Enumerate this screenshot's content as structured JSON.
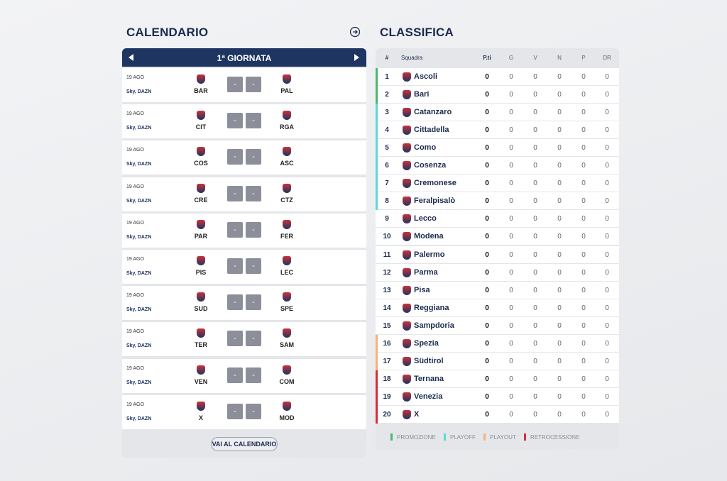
{
  "calendario": {
    "title": "CALENDARIO",
    "round": "1ª GIORNATA",
    "button": "VAI AL CALENDARIO",
    "matches": [
      {
        "date": "19 AGO",
        "tv": "Sky, DAZN",
        "home": "BAR",
        "away": "PAL",
        "score": [
          "-",
          "-"
        ]
      },
      {
        "date": "19 AGO",
        "tv": "Sky, DAZN",
        "home": "CIT",
        "away": "RGA",
        "score": [
          "-",
          "-"
        ]
      },
      {
        "date": "19 AGO",
        "tv": "Sky, DAZN",
        "home": "COS",
        "away": "ASC",
        "score": [
          "-",
          "-"
        ]
      },
      {
        "date": "19 AGO",
        "tv": "Sky, DAZN",
        "home": "CRE",
        "away": "CTZ",
        "score": [
          "-",
          "-"
        ]
      },
      {
        "date": "19 AGO",
        "tv": "Sky, DAZN",
        "home": "PAR",
        "away": "FER",
        "score": [
          "-",
          "-"
        ]
      },
      {
        "date": "19 AGO",
        "tv": "Sky, DAZN",
        "home": "PIS",
        "away": "LEC",
        "score": [
          "-",
          "-"
        ]
      },
      {
        "date": "19 AGO",
        "tv": "Sky, DAZN",
        "home": "SUD",
        "away": "SPE",
        "score": [
          "-",
          "-"
        ]
      },
      {
        "date": "19 AGO",
        "tv": "Sky, DAZN",
        "home": "TER",
        "away": "SAM",
        "score": [
          "-",
          "-"
        ]
      },
      {
        "date": "19 AGO",
        "tv": "Sky, DAZN",
        "home": "VEN",
        "away": "COM",
        "score": [
          "-",
          "-"
        ]
      },
      {
        "date": "19 AGO",
        "tv": "Sky, DAZN",
        "home": "X",
        "away": "MOD",
        "score": [
          "-",
          "-"
        ]
      }
    ]
  },
  "classifica": {
    "title": "CLASSIFICA",
    "columns": [
      "#",
      "Squadra",
      "P.ti",
      "G",
      "V",
      "N",
      "P",
      "DR"
    ],
    "rows": [
      {
        "pos": 1,
        "team": "Ascoli",
        "values": [
          0,
          0,
          0,
          0,
          0,
          0
        ],
        "color": "#4cb86a"
      },
      {
        "pos": 2,
        "team": "Bari",
        "values": [
          0,
          0,
          0,
          0,
          0,
          0
        ],
        "color": "#4cb86a"
      },
      {
        "pos": 3,
        "team": "Catanzaro",
        "values": [
          0,
          0,
          0,
          0,
          0,
          0
        ],
        "color": "#5ed8dc"
      },
      {
        "pos": 4,
        "team": "Cittadella",
        "values": [
          0,
          0,
          0,
          0,
          0,
          0
        ],
        "color": "#5ed8dc"
      },
      {
        "pos": 5,
        "team": "Como",
        "values": [
          0,
          0,
          0,
          0,
          0,
          0
        ],
        "color": "#5ed8dc"
      },
      {
        "pos": 6,
        "team": "Cosenza",
        "values": [
          0,
          0,
          0,
          0,
          0,
          0
        ],
        "color": "#5ed8dc"
      },
      {
        "pos": 7,
        "team": "Cremonese",
        "values": [
          0,
          0,
          0,
          0,
          0,
          0
        ],
        "color": "#5ed8dc"
      },
      {
        "pos": 8,
        "team": "Feralpisalò",
        "values": [
          0,
          0,
          0,
          0,
          0,
          0
        ],
        "color": "#5ed8dc"
      },
      {
        "pos": 9,
        "team": "Lecco",
        "values": [
          0,
          0,
          0,
          0,
          0,
          0
        ],
        "color": null
      },
      {
        "pos": 10,
        "team": "Modena",
        "values": [
          0,
          0,
          0,
          0,
          0,
          0
        ],
        "color": null
      },
      {
        "pos": 11,
        "team": "Palermo",
        "values": [
          0,
          0,
          0,
          0,
          0,
          0
        ],
        "color": null
      },
      {
        "pos": 12,
        "team": "Parma",
        "values": [
          0,
          0,
          0,
          0,
          0,
          0
        ],
        "color": null
      },
      {
        "pos": 13,
        "team": "Pisa",
        "values": [
          0,
          0,
          0,
          0,
          0,
          0
        ],
        "color": null
      },
      {
        "pos": 14,
        "team": "Reggiana",
        "values": [
          0,
          0,
          0,
          0,
          0,
          0
        ],
        "color": null
      },
      {
        "pos": 15,
        "team": "Sampdoria",
        "values": [
          0,
          0,
          0,
          0,
          0,
          0
        ],
        "color": null
      },
      {
        "pos": 16,
        "team": "Spezia",
        "values": [
          0,
          0,
          0,
          0,
          0,
          0
        ],
        "color": "#f5b27a"
      },
      {
        "pos": 17,
        "team": "Südtirol",
        "values": [
          0,
          0,
          0,
          0,
          0,
          0
        ],
        "color": "#f5b27a"
      },
      {
        "pos": 18,
        "team": "Ternana",
        "values": [
          0,
          0,
          0,
          0,
          0,
          0
        ],
        "color": "#d62d3a"
      },
      {
        "pos": 19,
        "team": "Venezia",
        "values": [
          0,
          0,
          0,
          0,
          0,
          0
        ],
        "color": "#d62d3a"
      },
      {
        "pos": 20,
        "team": "X",
        "values": [
          0,
          0,
          0,
          0,
          0,
          0
        ],
        "color": "#d62d3a"
      }
    ],
    "legend": [
      {
        "label": "PROMOZIONE",
        "color": "#4cb86a"
      },
      {
        "label": "PLAYOFF",
        "color": "#5ed8dc"
      },
      {
        "label": "PLAYOUT",
        "color": "#f5b27a"
      },
      {
        "label": "RETROCESSIONE",
        "color": "#d62d3a"
      }
    ]
  }
}
